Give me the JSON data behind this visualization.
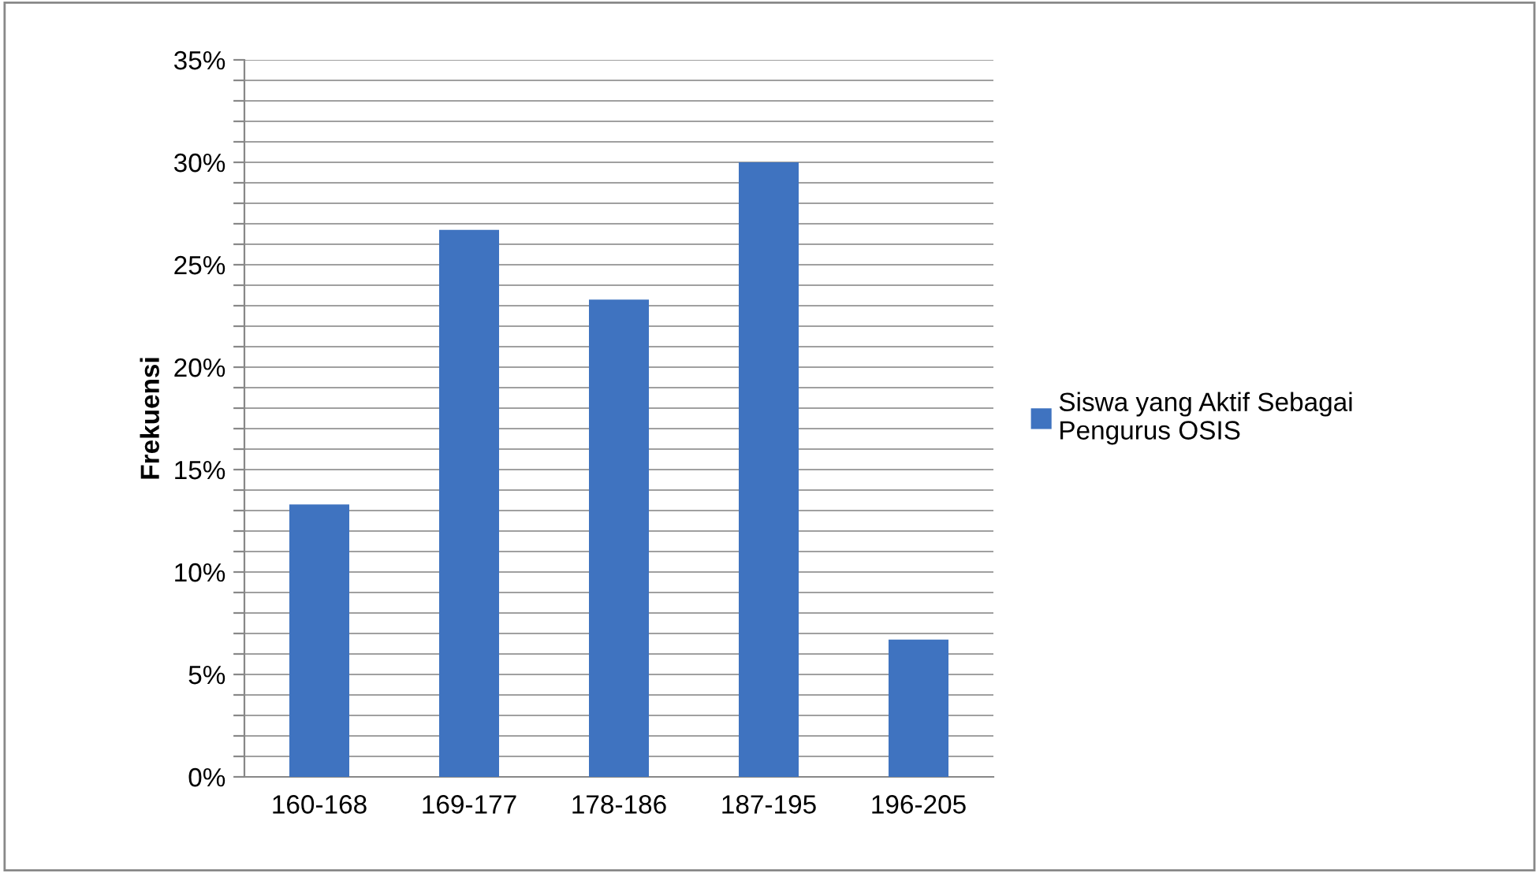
{
  "chart_data": {
    "type": "bar",
    "ylabel": "Frekuensi",
    "categories": [
      "160-168",
      "169-177",
      "178-186",
      "187-195",
      "196-205"
    ],
    "series": [
      {
        "name": "Siswa yang Aktif Sebagai\nPengurus OSIS",
        "color": "#3f73c0",
        "values": [
          13.3,
          26.7,
          23.3,
          30.0,
          6.7
        ]
      }
    ],
    "ylim": [
      0,
      35
    ],
    "yticks": [
      {
        "value": 0,
        "label": "0%"
      },
      {
        "value": 1,
        "label": null
      },
      {
        "value": 2,
        "label": null
      },
      {
        "value": 3,
        "label": null
      },
      {
        "value": 4,
        "label": null
      },
      {
        "value": 5,
        "label": "5%"
      },
      {
        "value": 6,
        "label": null
      },
      {
        "value": 7,
        "label": null
      },
      {
        "value": 8,
        "label": null
      },
      {
        "value": 9,
        "label": null
      },
      {
        "value": 10,
        "label": "10%"
      },
      {
        "value": 11,
        "label": null
      },
      {
        "value": 12,
        "label": null
      },
      {
        "value": 13,
        "label": null
      },
      {
        "value": 14,
        "label": null
      },
      {
        "value": 15,
        "label": "15%"
      },
      {
        "value": 16,
        "label": null
      },
      {
        "value": 17,
        "label": null
      },
      {
        "value": 18,
        "label": null
      },
      {
        "value": 19,
        "label": null
      },
      {
        "value": 20,
        "label": "20%"
      },
      {
        "value": 21,
        "label": null
      },
      {
        "value": 22,
        "label": null
      },
      {
        "value": 23,
        "label": null
      },
      {
        "value": 24,
        "label": null
      },
      {
        "value": 25,
        "label": "25%"
      },
      {
        "value": 26,
        "label": null
      },
      {
        "value": 27,
        "label": null
      },
      {
        "value": 28,
        "label": null
      },
      {
        "value": 29,
        "label": null
      },
      {
        "value": 30,
        "label": "30%"
      },
      {
        "value": 31,
        "label": null
      },
      {
        "value": 32,
        "label": null
      },
      {
        "value": 33,
        "label": null
      },
      {
        "value": 34,
        "label": null
      },
      {
        "value": 35,
        "label": "35%"
      }
    ],
    "grid": "y",
    "legend": "right"
  }
}
